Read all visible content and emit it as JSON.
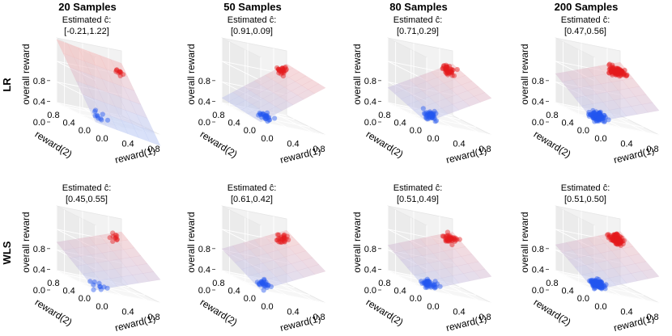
{
  "chart_data": {
    "type": "scatter",
    "figure": {
      "columns": [
        "20 Samples",
        "50 Samples",
        "80 Samples",
        "200 Samples"
      ],
      "rows": [
        "LR",
        "WLS"
      ]
    },
    "axes_labels": {
      "x": "reward(1)",
      "y": "reward(2)",
      "z": "overall reward"
    },
    "ticks": {
      "x": [
        "0.0",
        "0.4",
        "0.8"
      ],
      "y": [
        "0.0",
        "0.4",
        "0.8"
      ],
      "z": [
        "0.0",
        "0.4",
        "0.8"
      ]
    },
    "xlim": [
      0,
      1
    ],
    "ylim": [
      0,
      1
    ],
    "zlim": [
      0,
      1
    ],
    "grid": true,
    "colors": {
      "high_reward": "#e41a1c",
      "low_reward": "#2456f0",
      "plane_high": "#f4b9b9",
      "plane_low": "#b9c8f4"
    },
    "panels": [
      {
        "row": "LR",
        "samples": 20,
        "est_label": "Estimated ĉ:",
        "est_value": "[-0.21,1.22]",
        "c": [
          -0.21,
          1.22
        ]
      },
      {
        "row": "LR",
        "samples": 50,
        "est_label": "Estimated ĉ:",
        "est_value": "[0.91,0.09]",
        "c": [
          0.91,
          0.09
        ]
      },
      {
        "row": "LR",
        "samples": 80,
        "est_label": "Estimated ĉ:",
        "est_value": "[0.71,0.29]",
        "c": [
          0.71,
          0.29
        ]
      },
      {
        "row": "LR",
        "samples": 200,
        "est_label": "Estimated ĉ:",
        "est_value": "[0.47,0.56]",
        "c": [
          0.47,
          0.56
        ]
      },
      {
        "row": "WLS",
        "samples": 20,
        "est_label": "Estimated ĉ:",
        "est_value": "[0.45,0.55]",
        "c": [
          0.45,
          0.55
        ]
      },
      {
        "row": "WLS",
        "samples": 50,
        "est_label": "Estimated ĉ:",
        "est_value": "[0.61,0.42]",
        "c": [
          0.61,
          0.42
        ]
      },
      {
        "row": "WLS",
        "samples": 80,
        "est_label": "Estimated ĉ:",
        "est_value": "[0.51,0.49]",
        "c": [
          0.51,
          0.49
        ]
      },
      {
        "row": "WLS",
        "samples": 200,
        "est_label": "Estimated ĉ:",
        "est_value": "[0.51,0.50]",
        "c": [
          0.51,
          0.5
        ]
      }
    ]
  }
}
